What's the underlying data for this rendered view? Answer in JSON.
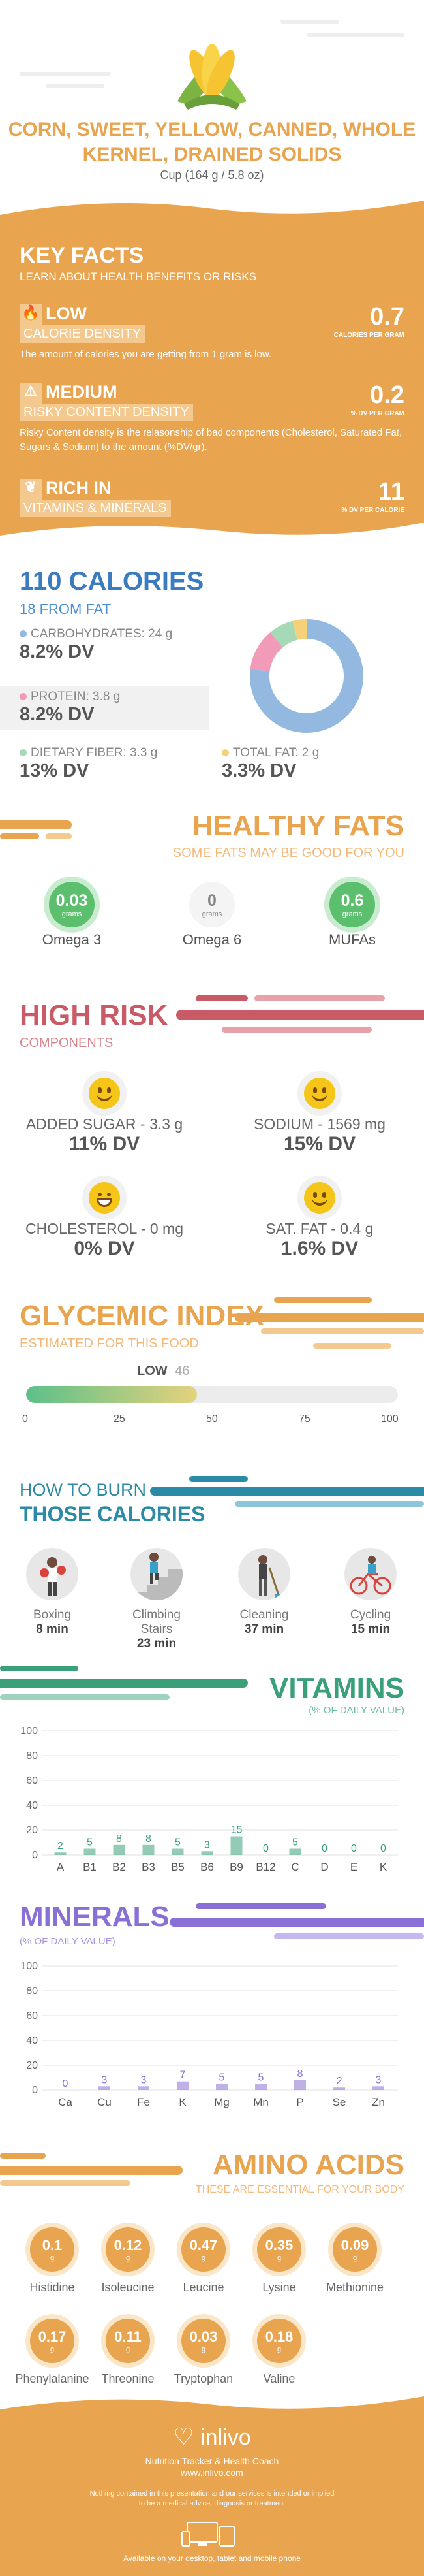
{
  "header": {
    "title": "CORN, SWEET, YELLOW, CANNED, WHOLE KERNEL, DRAINED SOLIDS",
    "serving": "Cup (164 g / 5.8 oz)",
    "food_icon": "corn-icon"
  },
  "key_facts": {
    "title": "KEY FACTS",
    "subtitle": "LEARN ABOUT HEALTH BENEFITS OR RISKS",
    "calorie_density": {
      "level": "LOW",
      "label": "CALORIE DENSITY",
      "description": "The amount of calories you are getting from 1 gram is low.",
      "value": "0.7",
      "unit": "CALORIES PER GRAM"
    },
    "risky_content": {
      "level": "MEDIUM",
      "label": "RISKY CONTENT DENSITY",
      "description": "Risky Content density is the relasonship of bad components (Cholesterol, Saturated Fat, Sugars & Sodium) to the amount (%DV/gr).",
      "value": "0.2",
      "unit": "% DV PER GRAM"
    },
    "vitamins_minerals": {
      "level": "RICH IN",
      "label": "VITAMINS & MINERALS",
      "value": "11",
      "unit": "% DV PER CALORIE"
    }
  },
  "calories": {
    "title": "110 CALORIES",
    "from_fat": "18 FROM FAT",
    "macros": [
      {
        "label": "CARBOHYDRATES: 24 g",
        "dv": "8.2% DV",
        "color": "#93b9e0"
      },
      {
        "label": "PROTEIN: 3.8 g",
        "dv": "8.2% DV",
        "color": "#f29bb8"
      },
      {
        "label": "DIETARY FIBER: 3.3 g",
        "dv": "13% DV",
        "color": "#a6d9b6"
      },
      {
        "label": "TOTAL FAT: 2 g",
        "dv": "3.3% DV",
        "color": "#f5d27a"
      }
    ],
    "donut": [
      {
        "name": "carbohydrates",
        "value": 77,
        "color": "#93b9e0"
      },
      {
        "name": "protein",
        "value": 12,
        "color": "#f29bb8"
      },
      {
        "name": "fiber",
        "value": 7,
        "color": "#a6d9b6"
      },
      {
        "name": "fat",
        "value": 4,
        "color": "#f5d27a"
      }
    ]
  },
  "healthy_fats": {
    "title": "HEALTHY FATS",
    "subtitle": "SOME FATS MAY BE GOOD FOR YOU",
    "items": [
      {
        "value": "0.03",
        "unit": "grams",
        "name": "Omega 3",
        "active": true
      },
      {
        "value": "0",
        "unit": "grams",
        "name": "Omega 6",
        "active": false
      },
      {
        "value": "0.6",
        "unit": "grams",
        "name": "MUFAs",
        "active": true
      }
    ]
  },
  "high_risk": {
    "title": "HIGH RISK",
    "subtitle": "COMPONENTS",
    "items": [
      {
        "label": "ADDED SUGAR - 3.3 g",
        "dv": "11% DV",
        "icon": "smile-icon"
      },
      {
        "label": "SODIUM - 1569 mg",
        "dv": "15% DV",
        "icon": "smile-icon"
      },
      {
        "label": "CHOLESTEROL - 0 mg",
        "dv": "0% DV",
        "icon": "grin-icon"
      },
      {
        "label": "SAT. FAT - 0.4 g",
        "dv": "1.6% DV",
        "icon": "smile-icon"
      }
    ]
  },
  "glycemic": {
    "title": "GLYCEMIC INDEX",
    "subtitle": "ESTIMATED FOR THIS FOOD",
    "level": "LOW",
    "value": "46",
    "value_num": 46,
    "ticks": [
      "0",
      "25",
      "50",
      "75",
      "100"
    ]
  },
  "burn": {
    "title1": "HOW TO BURN",
    "title2": "THOSE CALORIES",
    "activities": [
      {
        "name": "Boxing",
        "minutes": "8 min",
        "icon": "boxing-icon"
      },
      {
        "name": "Climbing Stairs",
        "minutes": "23 min",
        "icon": "stairs-icon"
      },
      {
        "name": "Cleaning",
        "minutes": "37 min",
        "icon": "cleaning-icon"
      },
      {
        "name": "Cycling",
        "minutes": "15 min",
        "icon": "cycling-icon"
      }
    ]
  },
  "chart_data": [
    {
      "type": "bar",
      "title": "VITAMINS",
      "subtitle": "(% OF DAILY VALUE)",
      "categories": [
        "A",
        "B1",
        "B2",
        "B3",
        "B5",
        "B6",
        "B9",
        "B12",
        "C",
        "D",
        "E",
        "K"
      ],
      "values": [
        2,
        5,
        8,
        8,
        5,
        3,
        15,
        0,
        5,
        0,
        0,
        0
      ],
      "ylim": [
        0,
        100
      ],
      "yticks": [
        "100",
        "80",
        "60",
        "40",
        "20",
        "0"
      ],
      "color": "#3aa07a"
    },
    {
      "type": "bar",
      "title": "MINERALS",
      "subtitle": "(% OF DAILY VALUE)",
      "categories": [
        "Ca",
        "Cu",
        "Fe",
        "K",
        "Mg",
        "Mn",
        "P",
        "Se",
        "Zn"
      ],
      "values": [
        0,
        3,
        3,
        7,
        5,
        5,
        8,
        2,
        3
      ],
      "ylim": [
        0,
        100
      ],
      "yticks": [
        "100",
        "80",
        "60",
        "40",
        "20",
        "0"
      ],
      "color": "#8a6fd6"
    }
  ],
  "amino": {
    "title": "AMINO ACIDS",
    "subtitle": "THESE ARE ESSENTIAL FOR YOUR BODY",
    "unit": "g",
    "items": [
      {
        "value": "0.1",
        "name": "Histidine"
      },
      {
        "value": "0.12",
        "name": "Isoleucine"
      },
      {
        "value": "0.47",
        "name": "Leucine"
      },
      {
        "value": "0.35",
        "name": "Lysine"
      },
      {
        "value": "0.09",
        "name": "Methionine"
      },
      {
        "value": "0.17",
        "name": "Phenylalanine"
      },
      {
        "value": "0.11",
        "name": "Threonine"
      },
      {
        "value": "0.03",
        "name": "Tryptophan"
      },
      {
        "value": "0.18",
        "name": "Valine"
      }
    ]
  },
  "footer": {
    "brand": "inlivo",
    "tagline": "Nutrition Tracker & Health Coach",
    "url": "www.inlivo.com",
    "disclaimer1": "Nothing contained in this presentation and our services is intended or implied",
    "disclaimer2": "to be a medical advice, diagnosis or treatment",
    "devices": "Available on your desktop, tablet and mobile phone"
  }
}
